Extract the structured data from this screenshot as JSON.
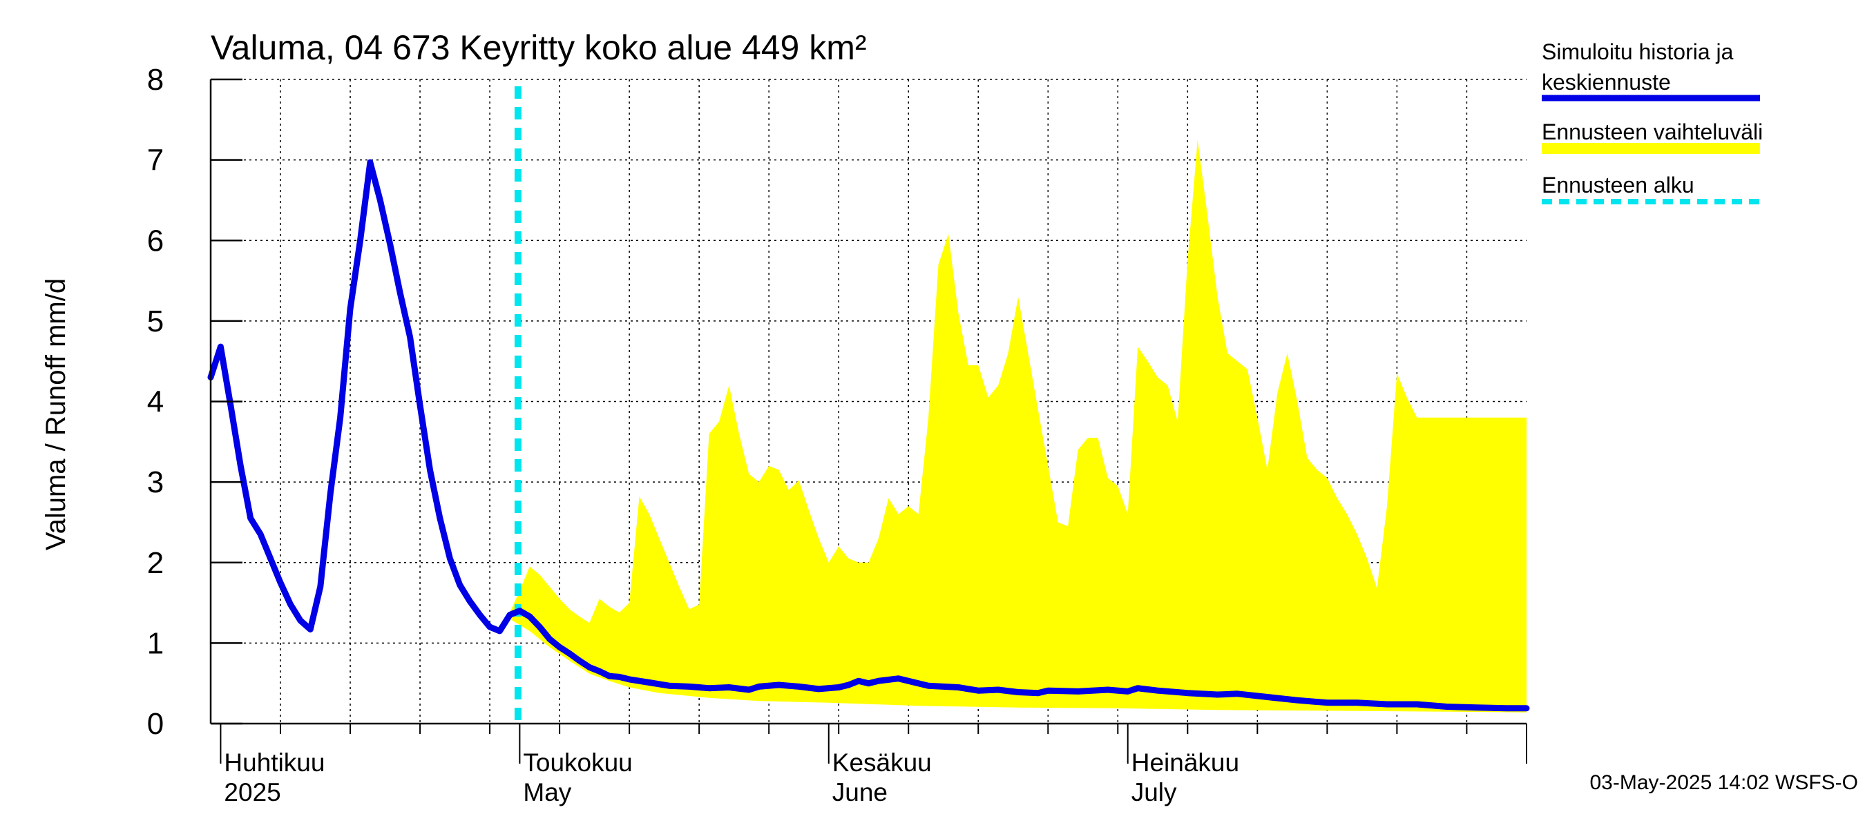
{
  "chart_data": {
    "type": "line",
    "title": "Valuma, 04 673 Keyritty koko alue 449 km²",
    "ylabel": "Valuma / Runoff    mm/d",
    "ylim": [
      0,
      8
    ],
    "yticks": [
      0,
      1,
      2,
      3,
      4,
      5,
      6,
      7,
      8
    ],
    "grid": true,
    "x_start": "2025-03-31",
    "x_end": "2025-08-10",
    "months": [
      {
        "fi": "Huhtikuu",
        "en": "2025",
        "date": "2025-04-01"
      },
      {
        "fi": "Toukokuu",
        "en": "May",
        "date": "2025-05-01"
      },
      {
        "fi": "Kesäkuu",
        "en": "June",
        "date": "2025-06-01"
      },
      {
        "fi": "Heinäkuu",
        "en": "July",
        "date": "2025-07-01"
      }
    ],
    "forecast_start": "2025-04-30",
    "series": [
      {
        "name": "Simuloitu historia ja keskiennuste",
        "color": "#0000e6",
        "points": [
          [
            "2025-03-31",
            4.3
          ],
          [
            "2025-04-01",
            4.68
          ],
          [
            "2025-04-02",
            3.95
          ],
          [
            "2025-04-03",
            3.2
          ],
          [
            "2025-04-04",
            2.55
          ],
          [
            "2025-04-05",
            2.35
          ],
          [
            "2025-04-06",
            2.05
          ],
          [
            "2025-04-07",
            1.75
          ],
          [
            "2025-04-08",
            1.48
          ],
          [
            "2025-04-09",
            1.28
          ],
          [
            "2025-04-10",
            1.17
          ],
          [
            "2025-04-11",
            1.7
          ],
          [
            "2025-04-12",
            2.85
          ],
          [
            "2025-04-13",
            3.8
          ],
          [
            "2025-04-14",
            5.15
          ],
          [
            "2025-04-15",
            6.0
          ],
          [
            "2025-04-16",
            6.97
          ],
          [
            "2025-04-17",
            6.5
          ],
          [
            "2025-04-18",
            5.95
          ],
          [
            "2025-04-19",
            5.35
          ],
          [
            "2025-04-20",
            4.8
          ],
          [
            "2025-04-21",
            3.95
          ],
          [
            "2025-04-22",
            3.15
          ],
          [
            "2025-04-23",
            2.55
          ],
          [
            "2025-04-24",
            2.05
          ],
          [
            "2025-04-25",
            1.72
          ],
          [
            "2025-04-26",
            1.52
          ],
          [
            "2025-04-27",
            1.35
          ],
          [
            "2025-04-28",
            1.2
          ],
          [
            "2025-04-29",
            1.15
          ],
          [
            "2025-04-30",
            1.35
          ],
          [
            "2025-05-01",
            1.4
          ],
          [
            "2025-05-02",
            1.33
          ],
          [
            "2025-05-03",
            1.2
          ],
          [
            "2025-05-04",
            1.05
          ],
          [
            "2025-05-05",
            0.95
          ],
          [
            "2025-05-06",
            0.87
          ],
          [
            "2025-05-07",
            0.78
          ],
          [
            "2025-05-08",
            0.7
          ],
          [
            "2025-05-09",
            0.65
          ],
          [
            "2025-05-10",
            0.59
          ],
          [
            "2025-05-11",
            0.58
          ],
          [
            "2025-05-12",
            0.55
          ],
          [
            "2025-05-14",
            0.51
          ],
          [
            "2025-05-16",
            0.47
          ],
          [
            "2025-05-18",
            0.46
          ],
          [
            "2025-05-20",
            0.44
          ],
          [
            "2025-05-22",
            0.45
          ],
          [
            "2025-05-24",
            0.42
          ],
          [
            "2025-05-25",
            0.46
          ],
          [
            "2025-05-27",
            0.48
          ],
          [
            "2025-05-29",
            0.46
          ],
          [
            "2025-05-31",
            0.43
          ],
          [
            "2025-06-02",
            0.45
          ],
          [
            "2025-06-03",
            0.48
          ],
          [
            "2025-06-04",
            0.53
          ],
          [
            "2025-06-05",
            0.5
          ],
          [
            "2025-06-06",
            0.53
          ],
          [
            "2025-06-08",
            0.56
          ],
          [
            "2025-06-09",
            0.53
          ],
          [
            "2025-06-11",
            0.47
          ],
          [
            "2025-06-14",
            0.45
          ],
          [
            "2025-06-16",
            0.41
          ],
          [
            "2025-06-18",
            0.42
          ],
          [
            "2025-06-20",
            0.39
          ],
          [
            "2025-06-22",
            0.38
          ],
          [
            "2025-06-23",
            0.41
          ],
          [
            "2025-06-26",
            0.4
          ],
          [
            "2025-06-29",
            0.42
          ],
          [
            "2025-07-01",
            0.4
          ],
          [
            "2025-07-02",
            0.44
          ],
          [
            "2025-07-04",
            0.41
          ],
          [
            "2025-07-07",
            0.38
          ],
          [
            "2025-07-10",
            0.36
          ],
          [
            "2025-07-12",
            0.37
          ],
          [
            "2025-07-15",
            0.33
          ],
          [
            "2025-07-18",
            0.29
          ],
          [
            "2025-07-21",
            0.26
          ],
          [
            "2025-07-24",
            0.26
          ],
          [
            "2025-07-27",
            0.24
          ],
          [
            "2025-07-30",
            0.24
          ],
          [
            "2025-08-02",
            0.21
          ],
          [
            "2025-08-05",
            0.2
          ],
          [
            "2025-08-08",
            0.19
          ],
          [
            "2025-08-10",
            0.19
          ]
        ]
      }
    ],
    "band": {
      "name": "Ennusteen vaihteluväli",
      "color": "#ffff00",
      "upper": [
        [
          "2025-04-30",
          1.38
        ],
        [
          "2025-05-01",
          1.65
        ],
        [
          "2025-05-02",
          1.95
        ],
        [
          "2025-05-03",
          1.85
        ],
        [
          "2025-05-04",
          1.7
        ],
        [
          "2025-05-05",
          1.55
        ],
        [
          "2025-05-06",
          1.42
        ],
        [
          "2025-05-07",
          1.33
        ],
        [
          "2025-05-08",
          1.25
        ],
        [
          "2025-05-09",
          1.55
        ],
        [
          "2025-05-10",
          1.45
        ],
        [
          "2025-05-11",
          1.38
        ],
        [
          "2025-05-12",
          1.5
        ],
        [
          "2025-05-13",
          2.82
        ],
        [
          "2025-05-14",
          2.6
        ],
        [
          "2025-05-15",
          2.3
        ],
        [
          "2025-05-16",
          2.0
        ],
        [
          "2025-05-17",
          1.7
        ],
        [
          "2025-05-18",
          1.42
        ],
        [
          "2025-05-19",
          1.48
        ],
        [
          "2025-05-20",
          3.6
        ],
        [
          "2025-05-21",
          3.75
        ],
        [
          "2025-05-22",
          4.2
        ],
        [
          "2025-05-23",
          3.6
        ],
        [
          "2025-05-24",
          3.1
        ],
        [
          "2025-05-25",
          3.0
        ],
        [
          "2025-05-26",
          3.2
        ],
        [
          "2025-05-27",
          3.15
        ],
        [
          "2025-05-28",
          2.9
        ],
        [
          "2025-05-29",
          3.02
        ],
        [
          "2025-05-30",
          2.65
        ],
        [
          "2025-05-31",
          2.3
        ],
        [
          "2025-06-01",
          2.0
        ],
        [
          "2025-06-02",
          2.2
        ],
        [
          "2025-06-03",
          2.05
        ],
        [
          "2025-06-04",
          2.0
        ],
        [
          "2025-06-05",
          2.0
        ],
        [
          "2025-06-06",
          2.3
        ],
        [
          "2025-06-07",
          2.8
        ],
        [
          "2025-06-08",
          2.6
        ],
        [
          "2025-06-09",
          2.7
        ],
        [
          "2025-06-10",
          2.6
        ],
        [
          "2025-06-11",
          3.8
        ],
        [
          "2025-06-12",
          5.7
        ],
        [
          "2025-06-13",
          6.08
        ],
        [
          "2025-06-14",
          5.1
        ],
        [
          "2025-06-15",
          4.45
        ],
        [
          "2025-06-16",
          4.45
        ],
        [
          "2025-06-17",
          4.05
        ],
        [
          "2025-06-18",
          4.2
        ],
        [
          "2025-06-19",
          4.6
        ],
        [
          "2025-06-20",
          5.3
        ],
        [
          "2025-06-21",
          4.6
        ],
        [
          "2025-06-22",
          3.9
        ],
        [
          "2025-06-23",
          3.2
        ],
        [
          "2025-06-24",
          2.5
        ],
        [
          "2025-06-25",
          2.45
        ],
        [
          "2025-06-26",
          3.4
        ],
        [
          "2025-06-27",
          3.55
        ],
        [
          "2025-06-28",
          3.55
        ],
        [
          "2025-06-29",
          3.05
        ],
        [
          "2025-06-30",
          2.95
        ],
        [
          "2025-07-01",
          2.6
        ],
        [
          "2025-07-02",
          4.68
        ],
        [
          "2025-07-03",
          4.5
        ],
        [
          "2025-07-04",
          4.3
        ],
        [
          "2025-07-05",
          4.2
        ],
        [
          "2025-07-06",
          3.75
        ],
        [
          "2025-07-07",
          5.75
        ],
        [
          "2025-07-08",
          7.25
        ],
        [
          "2025-07-09",
          6.3
        ],
        [
          "2025-07-10",
          5.3
        ],
        [
          "2025-07-11",
          4.6
        ],
        [
          "2025-07-12",
          4.5
        ],
        [
          "2025-07-13",
          4.4
        ],
        [
          "2025-07-14",
          3.8
        ],
        [
          "2025-07-15",
          3.15
        ],
        [
          "2025-07-16",
          4.1
        ],
        [
          "2025-07-17",
          4.6
        ],
        [
          "2025-07-18",
          4.0
        ],
        [
          "2025-07-19",
          3.3
        ],
        [
          "2025-07-20",
          3.15
        ],
        [
          "2025-07-21",
          3.05
        ],
        [
          "2025-07-22",
          2.8
        ],
        [
          "2025-07-23",
          2.6
        ],
        [
          "2025-07-24",
          2.35
        ],
        [
          "2025-07-25",
          2.05
        ],
        [
          "2025-07-26",
          1.68
        ],
        [
          "2025-07-27",
          2.7
        ],
        [
          "2025-07-28",
          4.35
        ],
        [
          "2025-07-29",
          4.05
        ],
        [
          "2025-07-30",
          3.8
        ],
        [
          "2025-08-10",
          3.8
        ]
      ],
      "lower": [
        [
          "2025-04-30",
          1.3
        ],
        [
          "2025-05-02",
          1.15
        ],
        [
          "2025-05-04",
          0.95
        ],
        [
          "2025-05-06",
          0.78
        ],
        [
          "2025-05-08",
          0.62
        ],
        [
          "2025-05-10",
          0.53
        ],
        [
          "2025-05-12",
          0.45
        ],
        [
          "2025-05-15",
          0.38
        ],
        [
          "2025-05-20",
          0.32
        ],
        [
          "2025-05-25",
          0.28
        ],
        [
          "2025-06-01",
          0.26
        ],
        [
          "2025-06-10",
          0.22
        ],
        [
          "2025-06-20",
          0.2
        ],
        [
          "2025-06-30",
          0.19
        ],
        [
          "2025-07-10",
          0.17
        ],
        [
          "2025-07-20",
          0.16
        ],
        [
          "2025-07-31",
          0.15
        ],
        [
          "2025-08-10",
          0.14
        ]
      ]
    },
    "forecast_line": {
      "name": "Ennusteen alku",
      "color": "#00e5ee"
    },
    "legend": {
      "position": "right",
      "entries": [
        {
          "label_line1": "Simuloitu historia ja",
          "label_line2": "keskiennuste",
          "color": "#0000e6",
          "style": "solid"
        },
        {
          "label_line1": "Ennusteen vaihteluväli",
          "label_line2": "",
          "color": "#ffff00",
          "style": "band"
        },
        {
          "label_line1": "Ennusteen alku",
          "label_line2": "",
          "color": "#00e5ee",
          "style": "dashed"
        }
      ]
    },
    "footer": "03-May-2025 14:02 WSFS-O"
  }
}
